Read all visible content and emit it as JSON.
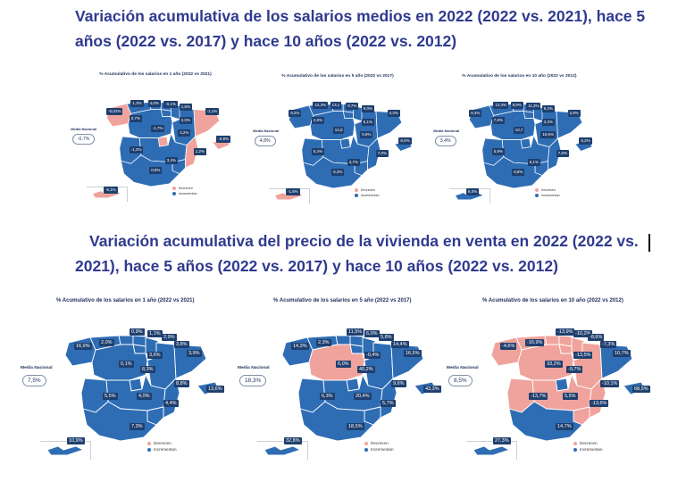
{
  "colors": {
    "heading": "#2f3a8f",
    "increase": "#2e6db4",
    "decrease": "#f0a39c",
    "badge": "#1f3f6e"
  },
  "headline_salaries": "Variación acumulativa de los salarios medios en 2022 (2022 vs. 2021), hace 5 años (2022 vs. 2017) y hace 10 años (2022 vs. 2012)",
  "headline_housing": {
    "line1": "Variación acumulativa del precio de la vivienda en venta en 2022 (2022 vs.",
    "line2": "2021), hace 5 años (2022 vs. 2017) y hace 10 años (2022 vs. 2012)"
  },
  "legend": {
    "decrease": "Decrecen",
    "increase": "Incrementan"
  },
  "panels": [
    {
      "id": "sal-1",
      "title": "% Acumulativo de los salarios en 1 año (2022 vs 2021)",
      "national_label": "Media Nacional",
      "national_value": "-0,7%",
      "show_national": true,
      "badges": [
        "-0,01%",
        "1,3%",
        "4,0%",
        "-0,1%",
        "1,6%",
        "-1,1%",
        "0,7%",
        "2,0%",
        "-1,7%",
        "4,2%",
        "-0,8%",
        "-1,2%",
        "1,2%",
        "3,4%",
        "0,8%",
        "-5,1%"
      ],
      "decrease_regions": [
        "galicia",
        "catalonia",
        "valencia",
        "madrid",
        "baleares",
        "canarias"
      ]
    },
    {
      "id": "sal-5",
      "title": "% Acumulativo de los salarios en 5 año (2022 vs 2017)",
      "national_label": "Media Nacional",
      "national_value": "4,8%",
      "show_national": true,
      "badges": [
        "9,2%",
        "12,3%",
        "13,1",
        "8,7%",
        "9,0%",
        "4,3%",
        "2,6%",
        "5,1%",
        "12,0",
        "5,6%",
        "8,0%",
        "5,4%",
        "7,0%",
        "4,7%",
        "5,3%",
        "-1,6%"
      ],
      "decrease_regions": [
        "canarias"
      ]
    },
    {
      "id": "sal-10",
      "title": "% Acumulativo de los salarios en 10 año (2022 vs 2012)",
      "national_label": "Media Nacional",
      "national_value": "3,4%",
      "show_national": true,
      "badges": [
        "8,4%",
        "13,3%",
        "9,9%",
        "11,3%",
        "9,2%",
        "2,9%",
        "7,6%",
        "3,3%",
        "10,7",
        "16,5%",
        "6,2%",
        "5,9%",
        "7,0%",
        "6,1%",
        "8,6%",
        "6,0%"
      ],
      "decrease_regions": []
    },
    {
      "id": "viv-1",
      "title": "% Acumulativo de los salarios en 1 año (2022 vs 2021)",
      "national_label": "Media Nacional",
      "national_value": "7,5%",
      "show_national": true,
      "badges": [
        "2,0%",
        "0,9%",
        "1,1%",
        "2,9%",
        "16,9%",
        "3,8%",
        "3,9%",
        "3,6%",
        "0,1%",
        "8,3%",
        "13,6%",
        "8,8%",
        "5,5%",
        "4,0%",
        "4,4%",
        "7,3%",
        "10,9%"
      ],
      "decrease_regions": []
    },
    {
      "id": "viv-5",
      "title": "% Acumulativo de los salarios en 5 año (2022 vs 2017)",
      "national_label": "Media Nacional",
      "national_value": "18,3%",
      "show_national": true,
      "badges": [
        "2,3%",
        "11,5%",
        "6,0%",
        "5,8%",
        "14,3%",
        "14,4%",
        "16,5%",
        "-0,4%",
        "6,0%",
        "40,2%",
        "43,3%",
        "9,6%",
        "6,3%",
        "20,4%",
        "5,7%",
        "18,5%",
        "32,8%"
      ],
      "decrease_regions": [
        "castilla-leon"
      ]
    },
    {
      "id": "viv-10",
      "title": "% Acumulativo de los salarios en 10 año (2022 vs 2012)",
      "national_label": "Media Nacional",
      "national_value": "8,5%",
      "show_national": true,
      "badges": [
        "-16,9%",
        "-13,9%",
        "-10,2%",
        "-8,6%",
        "-4,6%",
        "-7,3%",
        "10,7%",
        "-13,5%",
        "33,2%",
        "-9,7%",
        "68,5%",
        "-10,1%",
        "-13,7%",
        "5,5%",
        "-13,6%",
        "14,7%",
        "27,3%"
      ],
      "decrease_regions": [
        "galicia",
        "asturias",
        "cantabria",
        "pais-vasco",
        "navarra",
        "aragon",
        "castilla-leon",
        "castilla-mancha",
        "extremadura",
        "la-rioja",
        "valencia",
        "murcia"
      ]
    }
  ]
}
